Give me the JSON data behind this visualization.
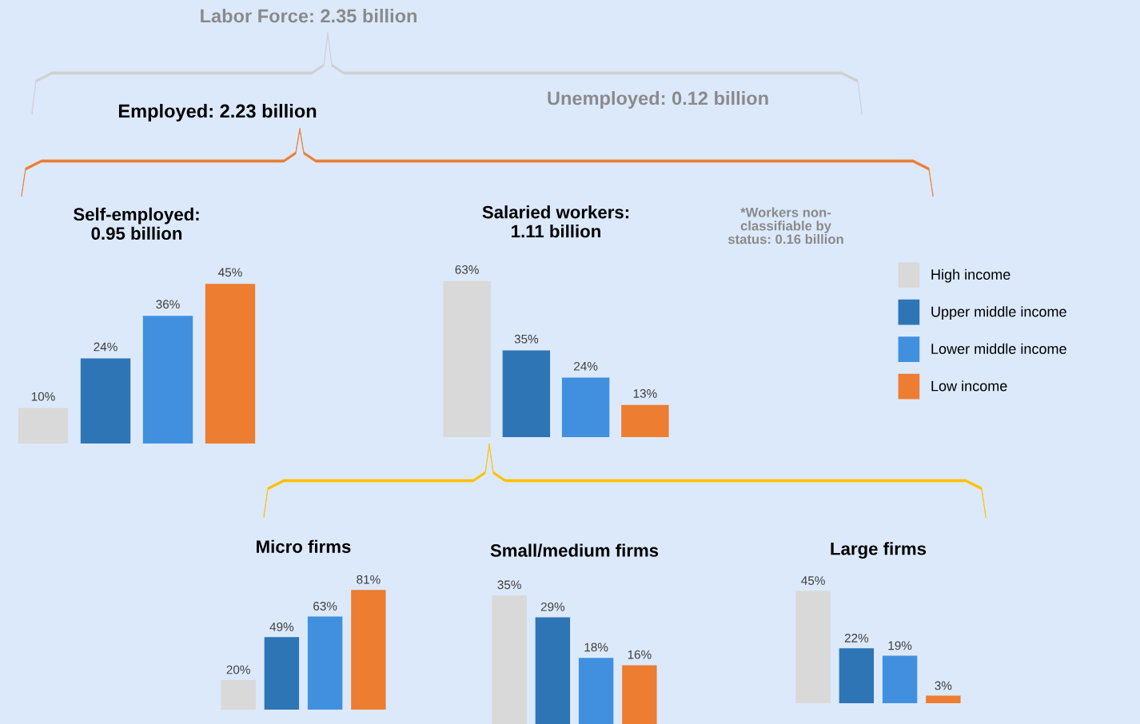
{
  "chart_data": [
    {
      "type": "bar",
      "title": "Self-employed:\n0.95 billion",
      "categories": [
        null
      ],
      "series": [
        {
          "color": "#d9d9d9",
          "values": [
            10
          ],
          "value_labels": [
            "10%"
          ]
        },
        {
          "color": "#2e75b6",
          "values": [
            24
          ],
          "value_labels": [
            "24%"
          ]
        },
        {
          "color": "#4190e0",
          "values": [
            36
          ],
          "value_labels": [
            "36%"
          ]
        },
        {
          "color": "#ed7d31",
          "values": [
            45
          ],
          "value_labels": [
            "45%"
          ]
        }
      ]
    },
    {
      "type": "bar",
      "title": "Salaried workers:\n1.11 billion",
      "categories": [
        null
      ],
      "legend": "right",
      "series": [
        {
          "name": "High income",
          "color": "#d9d9d9",
          "values": [
            63
          ],
          "value_labels": [
            "63%"
          ]
        },
        {
          "name": "Upper middle income",
          "color": "#2e75b6",
          "values": [
            35
          ],
          "value_labels": [
            "35%"
          ]
        },
        {
          "name": "Lower middle income",
          "color": "#4190e0",
          "values": [
            24
          ],
          "value_labels": [
            "24%"
          ]
        },
        {
          "name": "Low income",
          "color": "#ed7d31",
          "values": [
            13
          ],
          "value_labels": [
            "13%"
          ]
        }
      ]
    },
    {
      "type": "bar",
      "title": "Micro firms",
      "categories": [
        null
      ],
      "series": [
        {
          "color": "#d9d9d9",
          "values": [
            20
          ],
          "value_labels": [
            "20%"
          ]
        },
        {
          "color": "#2e75b6",
          "values": [
            49
          ],
          "value_labels": [
            "49%"
          ]
        },
        {
          "color": "#4190e0",
          "values": [
            63
          ],
          "value_labels": [
            "63%"
          ]
        },
        {
          "color": "#ed7d31",
          "values": [
            81
          ],
          "value_labels": [
            "81%"
          ]
        }
      ]
    },
    {
      "type": "bar",
      "title": "Small/medium firms",
      "categories": [
        null
      ],
      "series": [
        {
          "color": "#d9d9d9",
          "values": [
            35
          ],
          "value_labels": [
            "35%"
          ]
        },
        {
          "color": "#2e75b6",
          "values": [
            29
          ],
          "value_labels": [
            "29%"
          ]
        },
        {
          "color": "#4190e0",
          "values": [
            18
          ],
          "value_labels": [
            "18%"
          ]
        },
        {
          "color": "#ed7d31",
          "values": [
            16
          ],
          "value_labels": [
            "16%"
          ]
        }
      ]
    },
    {
      "type": "bar",
      "title": "Large firms",
      "categories": [
        null
      ],
      "series": [
        {
          "color": "#d9d9d9",
          "values": [
            45
          ],
          "value_labels": [
            "45%"
          ]
        },
        {
          "color": "#2e75b6",
          "values": [
            22
          ],
          "value_labels": [
            "22%"
          ]
        },
        {
          "color": "#4190e0",
          "values": [
            19
          ],
          "value_labels": [
            "19%"
          ]
        },
        {
          "color": "#ed7d31",
          "values": [
            3
          ],
          "value_labels": [
            "3%"
          ]
        }
      ]
    },
    {
      "type": "other",
      "annotations": [
        "Labor Force: 2.35 billion",
        "Employed: 2.23 billion",
        "Unemployed: 0.12 billion",
        "*Workers non-\nclassifiable by\nstatus: 0.16 billion"
      ]
    }
  ]
}
